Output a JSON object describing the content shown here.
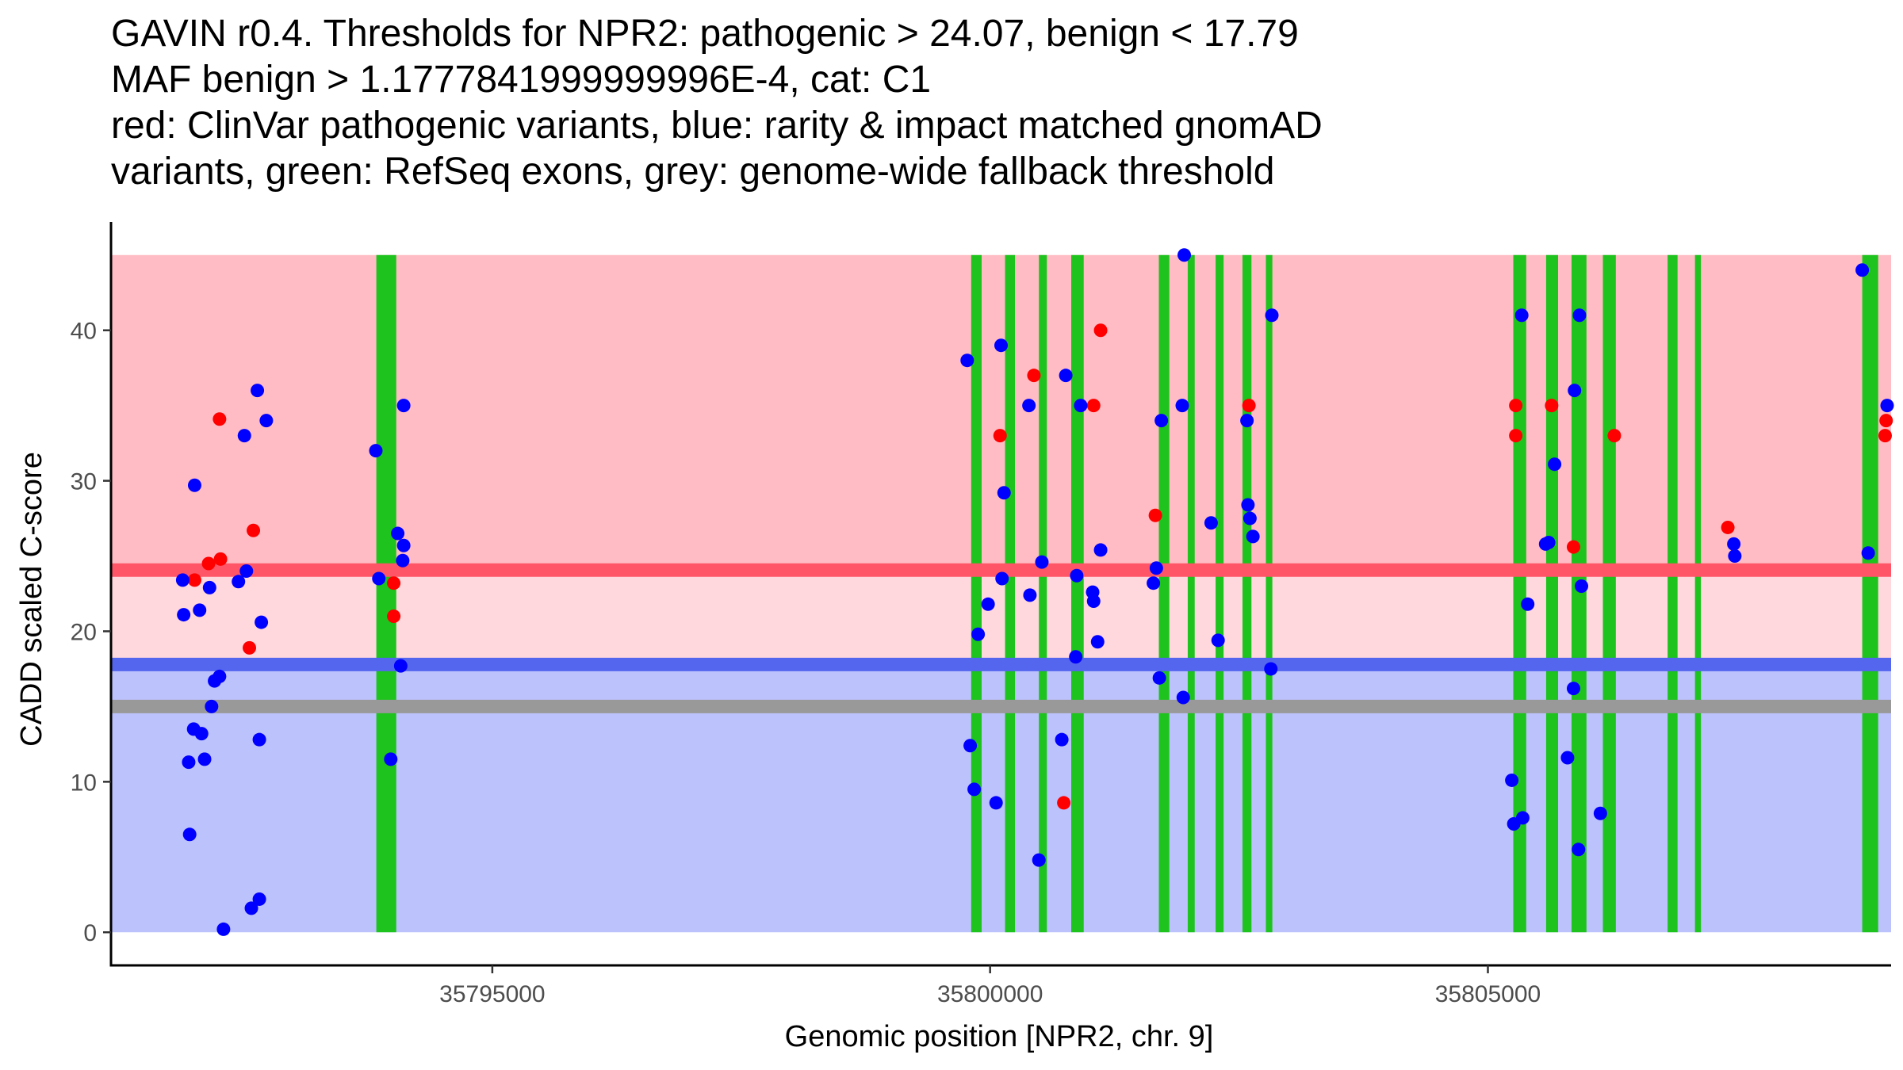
{
  "chart_data": {
    "type": "scatter",
    "title_lines": [
      "GAVIN r0.4. Thresholds for NPR2: pathogenic > 24.07, benign < 17.79",
      "MAF benign > 1.1777841999999996E-4, cat: C1",
      "red: ClinVar pathogenic variants, blue: rarity & impact matched gnomAD",
      "variants, green: RefSeq exons, grey: genome-wide fallback threshold"
    ],
    "xlabel": "Genomic position [NPR2, chr. 9]",
    "ylabel": "CADD scaled C-score",
    "xlim": [
      35791170,
      35809050
    ],
    "ylim": [
      -2.2,
      47.2
    ],
    "x_ticks": [
      35795000,
      35800000,
      35805000
    ],
    "x_tick_labels": [
      "35795000",
      "35800000",
      "35805000"
    ],
    "y_ticks": [
      0,
      10,
      20,
      30,
      40
    ],
    "y_tick_labels": [
      "0",
      "10",
      "20",
      "30",
      "40"
    ],
    "regions": [
      {
        "name": "pathogenic-zone",
        "y0": 24.07,
        "y1": 45,
        "color": "#ffbcc4"
      },
      {
        "name": "uncertain-zone",
        "y0": 17.79,
        "y1": 24.07,
        "color": "#ffd8de"
      },
      {
        "name": "benign-zone",
        "y0": 0,
        "y1": 17.79,
        "color": "#bcc2fb"
      }
    ],
    "threshold_lines": [
      {
        "name": "pathogenic-threshold",
        "y": 24.07,
        "color": "#ff5566"
      },
      {
        "name": "benign-threshold",
        "y": 17.79,
        "color": "#5566ee"
      },
      {
        "name": "fallback-threshold",
        "y": 15.0,
        "color": "#999999"
      }
    ],
    "exon_color": "#1ec31e",
    "exons": [
      [
        35793835,
        35794035
      ],
      [
        35799810,
        35799915
      ],
      [
        35800150,
        35800250
      ],
      [
        35800490,
        35800570
      ],
      [
        35800815,
        35800940
      ],
      [
        35801695,
        35801800
      ],
      [
        35801985,
        35802055
      ],
      [
        35802265,
        35802345
      ],
      [
        35802535,
        35802625
      ],
      [
        35802770,
        35802835
      ],
      [
        35805255,
        35805385
      ],
      [
        35805585,
        35805705
      ],
      [
        35805840,
        35805990
      ],
      [
        35806155,
        35806285
      ],
      [
        35806805,
        35806905
      ],
      [
        35807080,
        35807140
      ],
      [
        35808760,
        35808920
      ]
    ],
    "series": [
      {
        "name": "ClinVar pathogenic",
        "color": "#ff0000",
        "points": [
          [
            35792010,
            23.4
          ],
          [
            35792150,
            24.5
          ],
          [
            35792260,
            34.1
          ],
          [
            35792270,
            24.8
          ],
          [
            35792560,
            18.9
          ],
          [
            35792600,
            26.7
          ],
          [
            35794010,
            23.2
          ],
          [
            35794010,
            21.0
          ],
          [
            35800100,
            33.0
          ],
          [
            35800440,
            37.0
          ],
          [
            35800740,
            8.6
          ],
          [
            35801040,
            35.0
          ],
          [
            35801110,
            40.0
          ],
          [
            35801660,
            27.7
          ],
          [
            35802600,
            35.0
          ],
          [
            35805280,
            35.0
          ],
          [
            35805280,
            33.0
          ],
          [
            35805640,
            35.0
          ],
          [
            35805860,
            25.6
          ],
          [
            35806270,
            33.0
          ],
          [
            35807410,
            26.9
          ],
          [
            35808990,
            33.0
          ],
          [
            35809000,
            34.0
          ]
        ]
      },
      {
        "name": "gnomAD matched",
        "color": "#0000ff",
        "points": [
          [
            35791890,
            23.4
          ],
          [
            35791900,
            21.1
          ],
          [
            35791950,
            11.3
          ],
          [
            35791960,
            6.5
          ],
          [
            35792000,
            13.5
          ],
          [
            35792010,
            29.7
          ],
          [
            35792060,
            21.4
          ],
          [
            35792080,
            13.2
          ],
          [
            35792110,
            11.5
          ],
          [
            35792160,
            22.9
          ],
          [
            35792180,
            15.0
          ],
          [
            35792210,
            16.7
          ],
          [
            35792260,
            17.0
          ],
          [
            35792300,
            0.2
          ],
          [
            35792450,
            23.3
          ],
          [
            35792510,
            33.0
          ],
          [
            35792530,
            24.0
          ],
          [
            35792580,
            1.6
          ],
          [
            35792640,
            36.0
          ],
          [
            35792660,
            2.2
          ],
          [
            35792660,
            12.8
          ],
          [
            35792680,
            20.6
          ],
          [
            35792730,
            34.0
          ],
          [
            35793830,
            32.0
          ],
          [
            35793860,
            23.5
          ],
          [
            35793980,
            11.5
          ],
          [
            35794050,
            26.5
          ],
          [
            35794080,
            17.7
          ],
          [
            35794100,
            24.7
          ],
          [
            35794110,
            25.7
          ],
          [
            35794110,
            35.0
          ],
          [
            35799770,
            38.0
          ],
          [
            35799800,
            12.4
          ],
          [
            35799840,
            9.5
          ],
          [
            35799880,
            19.8
          ],
          [
            35799980,
            21.8
          ],
          [
            35800060,
            8.6
          ],
          [
            35800110,
            39.0
          ],
          [
            35800120,
            23.5
          ],
          [
            35800140,
            29.2
          ],
          [
            35800390,
            35.0
          ],
          [
            35800400,
            22.4
          ],
          [
            35800490,
            4.8
          ],
          [
            35800520,
            24.6
          ],
          [
            35800720,
            12.8
          ],
          [
            35800760,
            37.0
          ],
          [
            35800860,
            18.3
          ],
          [
            35800870,
            23.7
          ],
          [
            35800910,
            35.0
          ],
          [
            35801030,
            22.6
          ],
          [
            35801040,
            22.0
          ],
          [
            35801080,
            19.3
          ],
          [
            35801110,
            25.4
          ],
          [
            35801640,
            23.2
          ],
          [
            35801670,
            24.2
          ],
          [
            35801700,
            16.9
          ],
          [
            35801720,
            34.0
          ],
          [
            35801930,
            35.0
          ],
          [
            35801940,
            15.6
          ],
          [
            35801950,
            45.0
          ],
          [
            35802220,
            27.2
          ],
          [
            35802290,
            19.4
          ],
          [
            35802580,
            34.0
          ],
          [
            35802590,
            28.4
          ],
          [
            35802610,
            27.5
          ],
          [
            35802640,
            26.3
          ],
          [
            35802820,
            17.5
          ],
          [
            35802830,
            41.0
          ],
          [
            35805240,
            10.1
          ],
          [
            35805260,
            7.2
          ],
          [
            35805340,
            41.0
          ],
          [
            35805350,
            7.6
          ],
          [
            35805400,
            21.8
          ],
          [
            35805580,
            25.8
          ],
          [
            35805610,
            25.9
          ],
          [
            35805670,
            31.1
          ],
          [
            35805800,
            11.6
          ],
          [
            35805860,
            16.2
          ],
          [
            35805870,
            36.0
          ],
          [
            35805910,
            5.5
          ],
          [
            35805920,
            41.0
          ],
          [
            35805940,
            23.0
          ],
          [
            35806130,
            7.9
          ],
          [
            35807470,
            25.8
          ],
          [
            35807480,
            25.0
          ],
          [
            35808760,
            44.0
          ],
          [
            35808820,
            25.2
          ],
          [
            35809010,
            35.0
          ]
        ]
      }
    ]
  }
}
